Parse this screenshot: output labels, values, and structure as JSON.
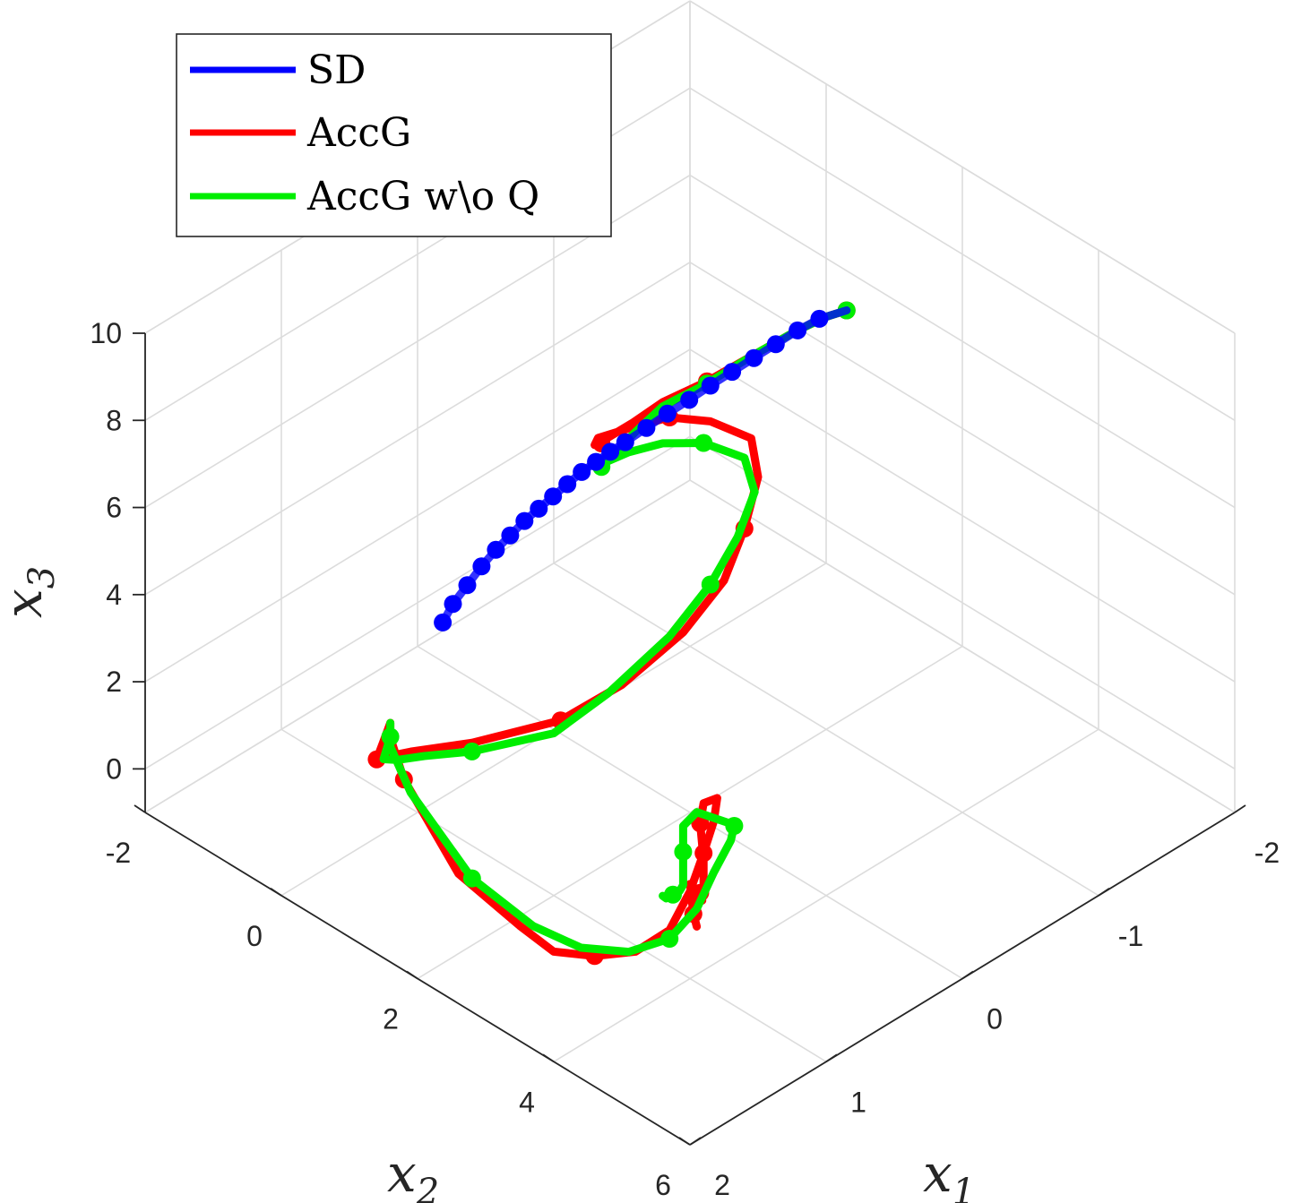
{
  "chart_data": {
    "type": "line3d",
    "title": "",
    "xlabel": "x",
    "xlabel_sub": "1",
    "ylabel": "x",
    "ylabel_sub": "2",
    "zlabel": "x",
    "zlabel_sub": "3",
    "x1_ticks": [
      "-2",
      "-1",
      "0",
      "1",
      "2"
    ],
    "x2_ticks": [
      "-2",
      "0",
      "2",
      "4",
      "6"
    ],
    "x3_ticks": [
      "0",
      "2",
      "4",
      "6",
      "8",
      "10"
    ],
    "xlim": [
      -2,
      2
    ],
    "ylim": [
      -2,
      6
    ],
    "zlim": [
      -1,
      10
    ],
    "grid": true,
    "legend_position": "top-left",
    "colors": {
      "SD": "#0000ff",
      "AccG": "#ff0000",
      "AccG w\\o Q": "#00ee00"
    },
    "series": [
      {
        "name": "AccG",
        "color": "#ff0000",
        "points": [
          [
            -1.84,
            0.62,
            5.7
          ],
          [
            -1.7,
            0.6,
            5.8
          ],
          [
            -1.5,
            0.55,
            5.8
          ],
          [
            -1.2,
            0.5,
            5.75
          ],
          [
            -0.9,
            0.45,
            5.7
          ],
          [
            -0.6,
            0.4,
            5.75
          ],
          [
            -0.4,
            0.35,
            5.6
          ],
          [
            -0.2,
            0.4,
            5.7
          ],
          [
            -0.1,
            0.5,
            5.85
          ],
          [
            0.0,
            0.6,
            6.1
          ],
          [
            0.05,
            0.75,
            6.5
          ],
          [
            0.0,
            1.2,
            7.1
          ],
          [
            -0.1,
            1.5,
            7.4
          ],
          [
            -0.2,
            1.9,
            7.5
          ],
          [
            -0.3,
            2.3,
            7.3
          ],
          [
            -0.25,
            2.5,
            6.7
          ],
          [
            -0.1,
            2.6,
            5.9
          ],
          [
            0.0,
            2.5,
            4.8
          ],
          [
            0.2,
            2.3,
            3.8
          ],
          [
            0.4,
            1.8,
            2.5
          ],
          [
            0.55,
            1.2,
            1.4
          ],
          [
            0.8,
            0.4,
            0.6
          ],
          [
            1.0,
            -0.1,
            0.3
          ],
          [
            1.1,
            -0.2,
            0.3
          ],
          [
            1.25,
            -0.1,
            0.6
          ],
          [
            1.3,
            0.1,
            1.3
          ],
          [
            1.4,
            0.4,
            2.2
          ],
          [
            1.7,
            1.0,
            3.0
          ],
          [
            1.9,
            1.6,
            3.0
          ],
          [
            1.9,
            2.4,
            1.6
          ],
          [
            1.7,
            2.9,
            0.5
          ],
          [
            1.6,
            3.2,
            0.0
          ],
          [
            1.45,
            3.5,
            -0.1
          ],
          [
            1.3,
            3.8,
            0.0
          ],
          [
            1.15,
            4.0,
            0.4
          ],
          [
            1.0,
            4.0,
            1.0
          ],
          [
            0.85,
            3.9,
            1.5
          ],
          [
            0.7,
            3.75,
            1.8
          ],
          [
            0.6,
            3.6,
            2.0
          ],
          [
            0.55,
            3.3,
            1.5
          ],
          [
            0.5,
            3.15,
            0.8
          ],
          [
            0.55,
            3.3,
            0.2
          ],
          [
            0.75,
            3.7,
            0.25
          ],
          [
            0.85,
            3.75,
            0.1
          ],
          [
            0.9,
            3.85,
            0.15
          ],
          [
            0.95,
            4.0,
            0.1
          ],
          [
            0.95,
            3.95,
            0.35
          ],
          [
            0.85,
            3.7,
            0.6
          ],
          [
            0.8,
            3.75,
            0.35
          ],
          [
            0.8,
            3.78,
            0.2
          ]
        ]
      },
      {
        "name": "AccG w\\o Q",
        "color": "#00ee00",
        "points": [
          [
            -1.84,
            0.62,
            5.7
          ],
          [
            -1.7,
            0.6,
            5.8
          ],
          [
            -1.5,
            0.55,
            5.8
          ],
          [
            -1.2,
            0.5,
            5.75
          ],
          [
            -0.9,
            0.45,
            5.65
          ],
          [
            -0.6,
            0.4,
            5.65
          ],
          [
            -0.4,
            0.38,
            5.4
          ],
          [
            -0.2,
            0.45,
            5.3
          ],
          [
            -0.05,
            0.6,
            5.5
          ],
          [
            0.05,
            0.8,
            5.95
          ],
          [
            0.05,
            1.2,
            6.6
          ],
          [
            -0.05,
            1.5,
            6.9
          ],
          [
            -0.15,
            1.9,
            7.1
          ],
          [
            -0.25,
            2.3,
            6.95
          ],
          [
            -0.2,
            2.55,
            6.5
          ],
          [
            -0.05,
            2.6,
            5.8
          ],
          [
            0.1,
            2.5,
            4.9
          ],
          [
            0.3,
            2.3,
            3.9
          ],
          [
            0.5,
            1.8,
            2.5
          ],
          [
            0.6,
            1.2,
            1.2
          ],
          [
            0.8,
            0.4,
            0.4
          ],
          [
            0.95,
            0.0,
            0.2
          ],
          [
            1.1,
            -0.1,
            0.3
          ],
          [
            1.25,
            0.0,
            0.7
          ],
          [
            1.3,
            0.2,
            1.5
          ],
          [
            1.4,
            0.4,
            2.2
          ],
          [
            1.7,
            1.0,
            2.8
          ],
          [
            1.85,
            1.6,
            2.6
          ],
          [
            1.8,
            2.4,
            1.3
          ],
          [
            1.6,
            2.9,
            0.3
          ],
          [
            1.45,
            3.3,
            -0.1
          ],
          [
            1.3,
            3.7,
            -0.1
          ],
          [
            1.15,
            4.0,
            0.2
          ],
          [
            1.0,
            4.1,
            0.7
          ],
          [
            0.85,
            4.05,
            1.2
          ],
          [
            0.7,
            4.0,
            1.6
          ],
          [
            0.6,
            3.85,
            1.6
          ],
          [
            0.58,
            3.7,
            1.5
          ],
          [
            0.55,
            3.2,
            1.2
          ],
          [
            0.5,
            2.9,
            0.5
          ],
          [
            0.55,
            3.0,
            0.1
          ],
          [
            0.65,
            3.2,
            0.0
          ],
          [
            0.75,
            3.4,
            0.1
          ],
          [
            0.85,
            3.55,
            0.3
          ],
          [
            0.95,
            3.65,
            0.5
          ],
          [
            1.05,
            3.75,
            0.7
          ],
          [
            1.1,
            3.8,
            0.9
          ]
        ]
      },
      {
        "name": "SD",
        "color": "#0000ff",
        "points": [
          [
            -1.84,
            0.62,
            5.7
          ],
          [
            -1.65,
            0.6,
            5.85
          ],
          [
            -1.5,
            0.58,
            5.85
          ],
          [
            -1.35,
            0.56,
            5.8
          ],
          [
            -1.2,
            0.54,
            5.75
          ],
          [
            -1.05,
            0.52,
            5.7
          ],
          [
            -0.9,
            0.5,
            5.65
          ],
          [
            -0.75,
            0.49,
            5.6
          ],
          [
            -0.6,
            0.47,
            5.55
          ],
          [
            -0.45,
            0.46,
            5.5
          ],
          [
            -0.3,
            0.45,
            5.45
          ],
          [
            -0.2,
            0.43,
            5.4
          ],
          [
            -0.1,
            0.42,
            5.35
          ],
          [
            0.0,
            0.41,
            5.3
          ],
          [
            0.1,
            0.4,
            5.2
          ],
          [
            0.2,
            0.39,
            5.1
          ],
          [
            0.3,
            0.38,
            5.0
          ],
          [
            0.4,
            0.37,
            4.9
          ],
          [
            0.5,
            0.36,
            4.75
          ],
          [
            0.6,
            0.35,
            4.6
          ],
          [
            0.7,
            0.34,
            4.4
          ],
          [
            0.8,
            0.33,
            4.15
          ],
          [
            0.9,
            0.32,
            3.9
          ],
          [
            0.97,
            0.31,
            3.6
          ]
        ]
      }
    ]
  },
  "legend": {
    "entries": [
      {
        "label": "SD",
        "color": "#0000ff"
      },
      {
        "label": "AccG",
        "color": "#ff0000"
      },
      {
        "label": "AccG w\\o Q",
        "color": "#00ee00"
      }
    ]
  }
}
